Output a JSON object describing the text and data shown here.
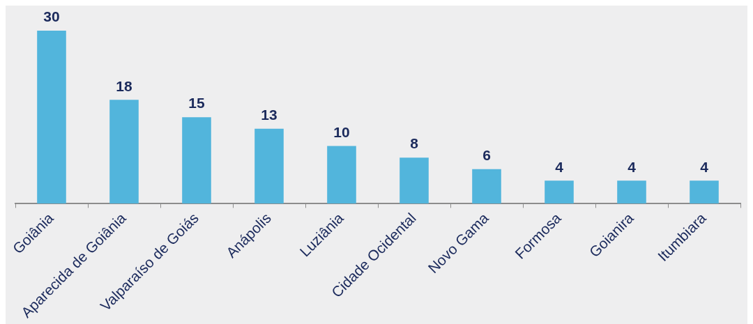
{
  "chart_data": {
    "type": "bar",
    "categories": [
      "Goiânia",
      "Aparecida de Goiânia",
      "Valparaíso de Goiás",
      "Anápolis",
      "Luziânia",
      "Cidade Ocidental",
      "Novo Gama",
      "Formosa",
      "Goianira",
      "Itumbiara"
    ],
    "values": [
      30,
      18,
      15,
      13,
      10,
      8,
      6,
      4,
      4,
      4
    ],
    "color": "#52b5dc",
    "data_labels": true
  }
}
